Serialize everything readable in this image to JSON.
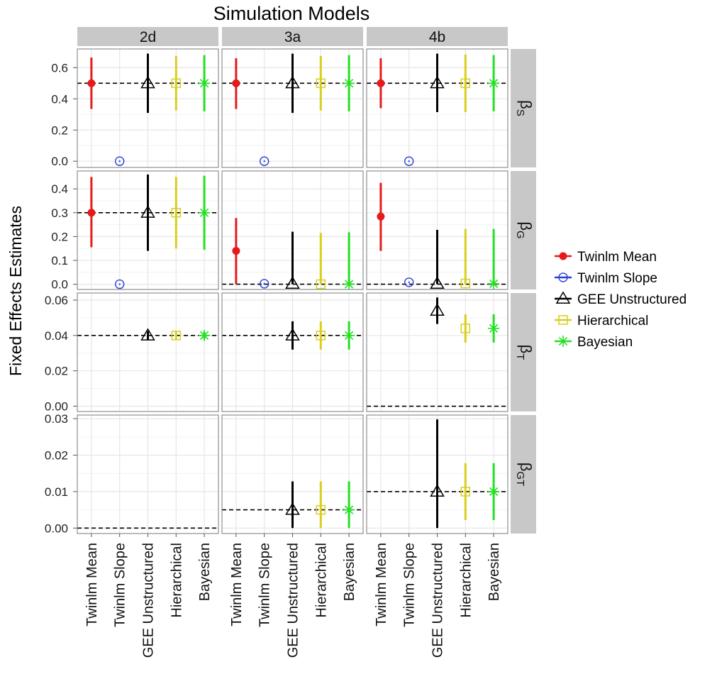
{
  "chart_data": {
    "type": "faceted-pointrange",
    "title": "Simulation Models",
    "ylabel": "Fixed Effects Estimates",
    "xlabel": "",
    "columns": [
      "2d",
      "3a",
      "4b"
    ],
    "categories": [
      "Twinlm Mean",
      "Twinlm Slope",
      "GEE Unstructured",
      "Hierarchical",
      "Bayesian"
    ],
    "rows": [
      {
        "greek": "β",
        "sub": "S",
        "ylim": [
          -0.04,
          0.72
        ],
        "ticks": [
          0.0,
          0.2,
          0.4,
          0.6
        ],
        "tick_labels": [
          "0.0",
          "0.2",
          "0.4",
          "0.6"
        ],
        "truth": [
          0.5,
          0.5,
          0.5
        ],
        "panels": [
          [
            [
              0.5,
              0.335,
              0.665
            ],
            [
              0.0,
              null,
              null
            ],
            [
              0.5,
              0.31,
              0.69
            ],
            [
              0.5,
              0.325,
              0.675
            ],
            [
              0.5,
              0.32,
              0.68
            ]
          ],
          [
            [
              0.5,
              0.335,
              0.66
            ],
            [
              0.0,
              null,
              null
            ],
            [
              0.5,
              0.31,
              0.69
            ],
            [
              0.5,
              0.325,
              0.675
            ],
            [
              0.5,
              0.32,
              0.68
            ]
          ],
          [
            [
              0.5,
              0.34,
              0.66
            ],
            [
              0.0,
              null,
              null
            ],
            [
              0.5,
              0.315,
              0.69
            ],
            [
              0.5,
              0.315,
              0.685
            ],
            [
              0.5,
              0.32,
              0.68
            ]
          ]
        ]
      },
      {
        "greek": "β",
        "sub": "G",
        "ylim": [
          -0.022,
          0.475
        ],
        "ticks": [
          0.0,
          0.1,
          0.2,
          0.3,
          0.4
        ],
        "tick_labels": [
          "0.0",
          "0.1",
          "0.2",
          "0.3",
          "0.4"
        ],
        "truth": [
          0.3,
          0.0,
          0.0
        ],
        "panels": [
          [
            [
              0.3,
              0.155,
              0.45
            ],
            [
              0.0,
              null,
              null
            ],
            [
              0.3,
              0.14,
              0.46
            ],
            [
              0.3,
              0.15,
              0.45
            ],
            [
              0.3,
              0.145,
              0.455
            ]
          ],
          [
            [
              0.14,
              0.0,
              0.278
            ],
            [
              0.002,
              null,
              null
            ],
            [
              0.002,
              0.0,
              0.22
            ],
            [
              0.0,
              0.0,
              0.215
            ],
            [
              0.0,
              0.0,
              0.218
            ]
          ],
          [
            [
              0.284,
              0.14,
              0.425
            ],
            [
              0.008,
              null,
              null
            ],
            [
              0.002,
              0.0,
              0.228
            ],
            [
              0.003,
              0.0,
              0.232
            ],
            [
              0.002,
              0.0,
              0.232
            ]
          ]
        ]
      },
      {
        "greek": "β",
        "sub": "T",
        "ylim": [
          -0.003,
          0.064
        ],
        "ticks": [
          0.0,
          0.02,
          0.04,
          0.06
        ],
        "tick_labels": [
          "0.00",
          "0.02",
          "0.04",
          "0.06"
        ],
        "truth": [
          0.04,
          0.04,
          0.0
        ],
        "panels": [
          [
            null,
            null,
            [
              0.04,
              0.0375,
              0.0425
            ],
            [
              0.04,
              0.0377,
              0.0423
            ],
            [
              0.04,
              0.038,
              0.042
            ]
          ],
          [
            null,
            null,
            [
              0.04,
              0.032,
              0.048
            ],
            [
              0.04,
              0.032,
              0.048
            ],
            [
              0.04,
              0.032,
              0.048
            ]
          ],
          [
            null,
            null,
            [
              0.054,
              0.0465,
              0.0615
            ],
            [
              0.044,
              0.036,
              0.052
            ],
            [
              0.044,
              0.036,
              0.052
            ]
          ]
        ]
      },
      {
        "greek": "β",
        "sub": "GT",
        "ylim": [
          -0.0015,
          0.031
        ],
        "ticks": [
          0.0,
          0.01,
          0.02,
          0.03
        ],
        "tick_labels": [
          "0.00",
          "0.01",
          "0.02",
          "0.03"
        ],
        "truth": [
          0.0,
          0.005,
          0.01
        ],
        "panels": [
          [
            null,
            null,
            null,
            null,
            null
          ],
          [
            null,
            null,
            [
              0.005,
              0.0,
              0.0128
            ],
            [
              0.005,
              0.0,
              0.0128
            ],
            [
              0.005,
              0.0,
              0.0128
            ]
          ],
          [
            null,
            null,
            [
              0.01,
              0.0,
              0.0298
            ],
            [
              0.01,
              0.0022,
              0.0178
            ],
            [
              0.01,
              0.0022,
              0.0178
            ]
          ]
        ]
      }
    ],
    "legend": {
      "position": "right",
      "items": [
        {
          "label": "Twinlm Mean",
          "color": "#e41a1c",
          "shape": "filled-circle"
        },
        {
          "label": "Twinlm Slope",
          "color": "#2b3fd6",
          "shape": "open-circle"
        },
        {
          "label": "GEE Unstructured",
          "color": "#000000",
          "shape": "open-triangle"
        },
        {
          "label": "Hierarchical",
          "color": "#d9cf1c",
          "shape": "open-square"
        },
        {
          "label": "Bayesian",
          "color": "#22e022",
          "shape": "asterisk"
        }
      ]
    }
  },
  "style": {
    "panel_bg": "#ffffff",
    "strip_bg": "#c8c8c8",
    "grid_major": "#e6e6e6",
    "grid_minor": "#f3f3f3",
    "panel_border": "#7a7a7a"
  }
}
